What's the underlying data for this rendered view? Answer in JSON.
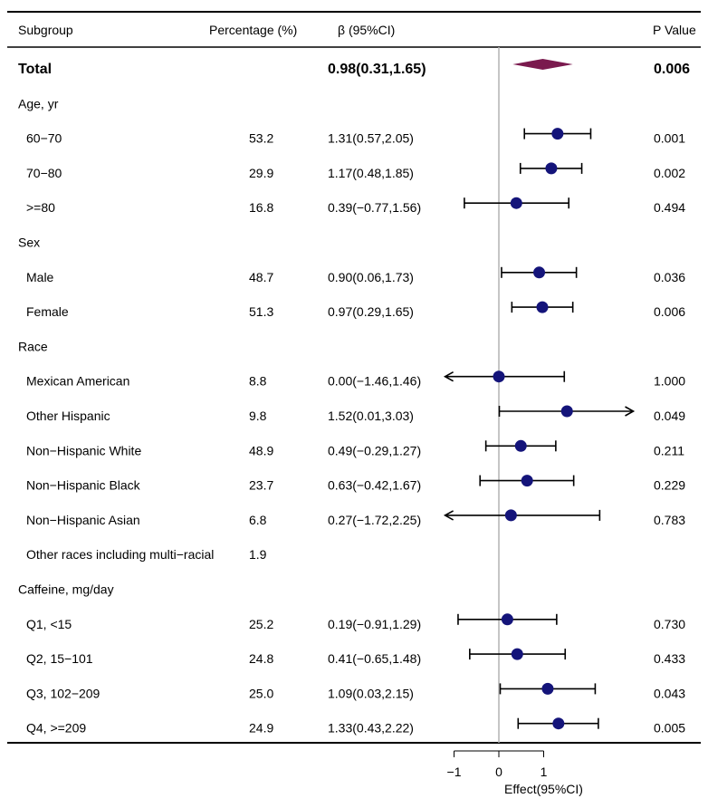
{
  "header": {
    "subgroup": "Subgroup",
    "percentage": "Percentage (%)",
    "beta": "β (95%CI)",
    "pvalue": "P Value"
  },
  "rows": [
    {
      "label": "Total",
      "bold": true,
      "indent": false,
      "pct": "",
      "ci": "0.98(0.31,1.65)",
      "p": "0.006"
    },
    {
      "label": "Age, yr",
      "bold": false,
      "indent": false,
      "pct": "",
      "ci": "",
      "p": ""
    },
    {
      "label": "60−70",
      "bold": false,
      "indent": true,
      "pct": "53.2",
      "ci": "1.31(0.57,2.05)",
      "p": "0.001"
    },
    {
      "label": "70−80",
      "bold": false,
      "indent": true,
      "pct": "29.9",
      "ci": "1.17(0.48,1.85)",
      "p": "0.002"
    },
    {
      "label": ">=80",
      "bold": false,
      "indent": true,
      "pct": "16.8",
      "ci": "0.39(−0.77,1.56)",
      "p": "0.494"
    },
    {
      "label": "Sex",
      "bold": false,
      "indent": false,
      "pct": "",
      "ci": "",
      "p": ""
    },
    {
      "label": "Male",
      "bold": false,
      "indent": true,
      "pct": "48.7",
      "ci": "0.90(0.06,1.73)",
      "p": "0.036"
    },
    {
      "label": "Female",
      "bold": false,
      "indent": true,
      "pct": "51.3",
      "ci": "0.97(0.29,1.65)",
      "p": "0.006"
    },
    {
      "label": "Race",
      "bold": false,
      "indent": false,
      "pct": "",
      "ci": "",
      "p": ""
    },
    {
      "label": "Mexican American",
      "bold": false,
      "indent": true,
      "pct": "8.8",
      "ci": "0.00(−1.46,1.46)",
      "p": "1.000"
    },
    {
      "label": "Other Hispanic",
      "bold": false,
      "indent": true,
      "pct": "9.8",
      "ci": "1.52(0.01,3.03)",
      "p": "0.049"
    },
    {
      "label": "Non−Hispanic White",
      "bold": false,
      "indent": true,
      "pct": "48.9",
      "ci": "0.49(−0.29,1.27)",
      "p": "0.211"
    },
    {
      "label": "Non−Hispanic Black",
      "bold": false,
      "indent": true,
      "pct": "23.7",
      "ci": "0.63(−0.42,1.67)",
      "p": "0.229"
    },
    {
      "label": "Non−Hispanic Asian",
      "bold": false,
      "indent": true,
      "pct": "6.8",
      "ci": "0.27(−1.72,2.25)",
      "p": "0.783"
    },
    {
      "label": "Other races including multi−racial",
      "bold": false,
      "indent": true,
      "pct": "1.9",
      "ci": "",
      "p": ""
    },
    {
      "label": "Caffeine, mg/day",
      "bold": false,
      "indent": false,
      "pct": "",
      "ci": "",
      "p": ""
    },
    {
      "label": "Q1, <15",
      "bold": false,
      "indent": true,
      "pct": "25.2",
      "ci": "0.19(−0.91,1.29)",
      "p": "0.730"
    },
    {
      "label": "Q2, 15−101",
      "bold": false,
      "indent": true,
      "pct": "24.8",
      "ci": "0.41(−0.65,1.48)",
      "p": "0.433"
    },
    {
      "label": "Q3, 102−209",
      "bold": false,
      "indent": true,
      "pct": "25.0",
      "ci": "1.09(0.03,2.15)",
      "p": "0.043"
    },
    {
      "label": "Q4, >=209",
      "bold": false,
      "indent": true,
      "pct": "24.9",
      "ci": "1.33(0.43,2.22)",
      "p": "0.005"
    }
  ],
  "chart_data": {
    "type": "forest",
    "xlabel": "Effect(95%CI)",
    "xticks": [
      -1,
      0,
      1
    ],
    "x_view": [
      -1.2,
      3.0
    ],
    "reference_line": 0,
    "series": [
      {
        "row": 0,
        "est": 0.98,
        "lo": 0.31,
        "hi": 1.65,
        "shape": "diamond"
      },
      {
        "row": 2,
        "est": 1.31,
        "lo": 0.57,
        "hi": 2.05,
        "shape": "point"
      },
      {
        "row": 3,
        "est": 1.17,
        "lo": 0.48,
        "hi": 1.85,
        "shape": "point"
      },
      {
        "row": 4,
        "est": 0.39,
        "lo": -0.77,
        "hi": 1.56,
        "shape": "point"
      },
      {
        "row": 6,
        "est": 0.9,
        "lo": 0.06,
        "hi": 1.73,
        "shape": "point"
      },
      {
        "row": 7,
        "est": 0.97,
        "lo": 0.29,
        "hi": 1.65,
        "shape": "point"
      },
      {
        "row": 9,
        "est": 0.0,
        "lo": -1.46,
        "hi": 1.46,
        "shape": "point"
      },
      {
        "row": 10,
        "est": 1.52,
        "lo": 0.01,
        "hi": 3.03,
        "shape": "point"
      },
      {
        "row": 11,
        "est": 0.49,
        "lo": -0.29,
        "hi": 1.27,
        "shape": "point"
      },
      {
        "row": 12,
        "est": 0.63,
        "lo": -0.42,
        "hi": 1.67,
        "shape": "point"
      },
      {
        "row": 13,
        "est": 0.27,
        "lo": -1.72,
        "hi": 2.25,
        "shape": "point"
      },
      {
        "row": 16,
        "est": 0.19,
        "lo": -0.91,
        "hi": 1.29,
        "shape": "point"
      },
      {
        "row": 17,
        "est": 0.41,
        "lo": -0.65,
        "hi": 1.48,
        "shape": "point"
      },
      {
        "row": 18,
        "est": 1.09,
        "lo": 0.03,
        "hi": 2.15,
        "shape": "point"
      },
      {
        "row": 19,
        "est": 1.33,
        "lo": 0.43,
        "hi": 2.22,
        "shape": "point"
      }
    ]
  },
  "colors": {
    "point": "#14147a",
    "diamond": "#7a1a4e",
    "reference": "#b3b3b3",
    "line": "#000000"
  }
}
